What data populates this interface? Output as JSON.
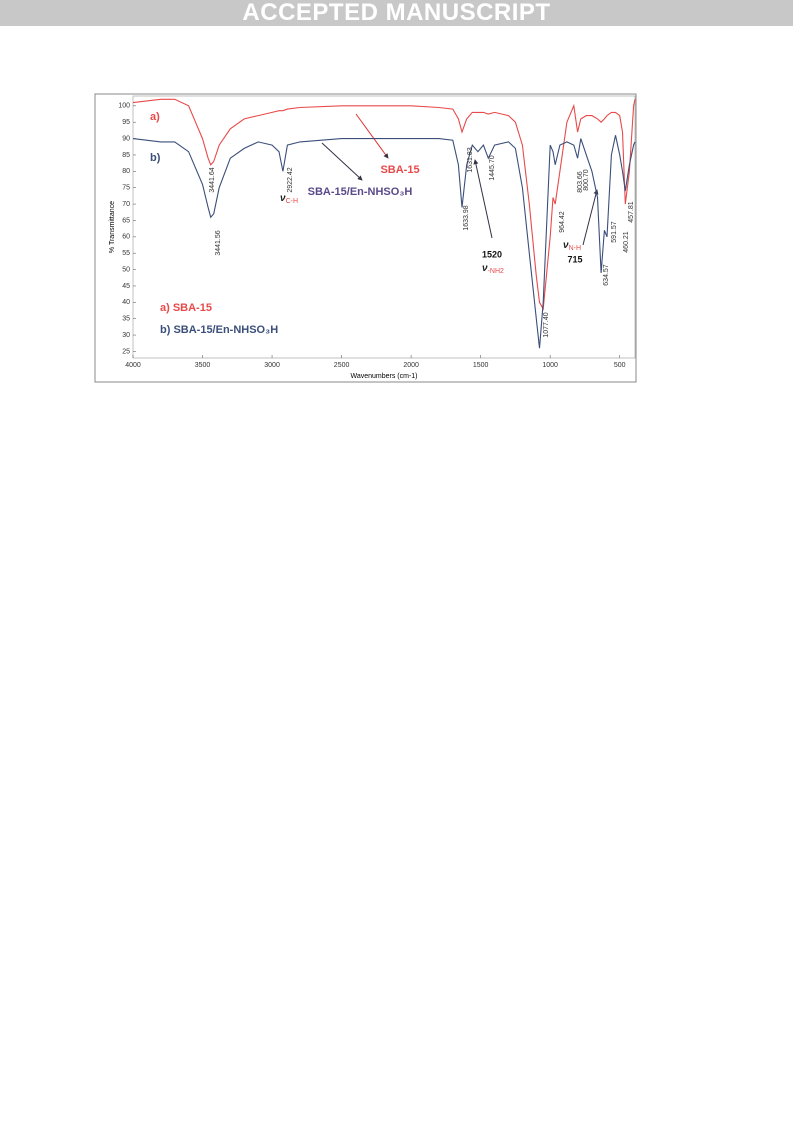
{
  "header": {
    "text": "ACCEPTED MANUSCRIPT"
  },
  "chart_data": {
    "type": "line",
    "x_label": "Wavenumbers (cm-1)",
    "y_label": "% Transmittance",
    "x": [
      4000,
      3800,
      3700,
      3600,
      3500,
      3460,
      3441,
      3420,
      3380,
      3300,
      3200,
      3100,
      3000,
      2950,
      2922,
      2890,
      2800,
      2500,
      2000,
      1800,
      1700,
      1660,
      1634,
      1600,
      1560,
      1520,
      1480,
      1445,
      1400,
      1300,
      1250,
      1200,
      1150,
      1100,
      1077,
      1050,
      1000,
      980,
      964,
      930,
      880,
      830,
      803,
      780,
      740,
      700,
      660,
      634,
      610,
      591,
      560,
      530,
      500,
      480,
      460,
      430,
      400,
      390
    ],
    "series": [
      {
        "name": "a) SBA-15",
        "color": "#e84a4a",
        "values": [
          101,
          102,
          102,
          100,
          90,
          84,
          82,
          83,
          88,
          93,
          96,
          97,
          98,
          98.5,
          98.5,
          99,
          99.5,
          100,
          100,
          99.5,
          99,
          96,
          92,
          96,
          98,
          98,
          98,
          97.5,
          98,
          97,
          95,
          88,
          70,
          48,
          40,
          38,
          60,
          72,
          70,
          80,
          95,
          100,
          92,
          96,
          97,
          97,
          96,
          95,
          96,
          97,
          98,
          98,
          97,
          92,
          70,
          80,
          100,
          102
        ]
      },
      {
        "name": "b) SBA-15/En-NHSO₃H",
        "color": "#3b4f7a",
        "values": [
          90,
          89,
          89,
          86,
          76,
          69,
          66,
          67,
          75,
          84,
          87,
          89,
          88,
          86,
          80,
          88,
          89,
          90,
          90,
          90,
          89.5,
          82,
          69,
          82,
          88,
          86,
          88,
          84,
          88,
          89,
          87,
          75,
          55,
          35,
          26,
          40,
          88,
          86,
          82,
          88,
          89,
          88,
          84,
          90,
          85,
          80,
          72,
          49,
          62,
          60,
          85,
          91,
          85,
          80,
          74,
          82,
          88,
          89
        ]
      }
    ],
    "xlim": [
      4000,
      390
    ],
    "ylim": [
      23,
      103
    ],
    "xticks": [
      4000,
      3500,
      3000,
      2500,
      2000,
      1500,
      1000,
      500
    ],
    "yticks": [
      25,
      30,
      35,
      40,
      45,
      50,
      55,
      60,
      65,
      70,
      75,
      80,
      85,
      90,
      95,
      100
    ],
    "annotations": [
      "a)",
      "b)",
      "SBA-15",
      "SBA-15/En-NHSO₃H",
      "3441.64",
      "3441.56",
      "2922.42",
      "1633.98",
      "1631.83",
      "1445.70",
      "1077.40",
      "964.42",
      "803.66",
      "800.70",
      "634.57",
      "591.57",
      "460.21",
      "457.81",
      "1520",
      "715"
    ],
    "nu_labels": [
      {
        "symbol": "ν",
        "sub": "C-H"
      },
      {
        "symbol": "ν",
        "sub": "-NH2"
      },
      {
        "symbol": "ν",
        "sub": "N-H"
      }
    ]
  }
}
